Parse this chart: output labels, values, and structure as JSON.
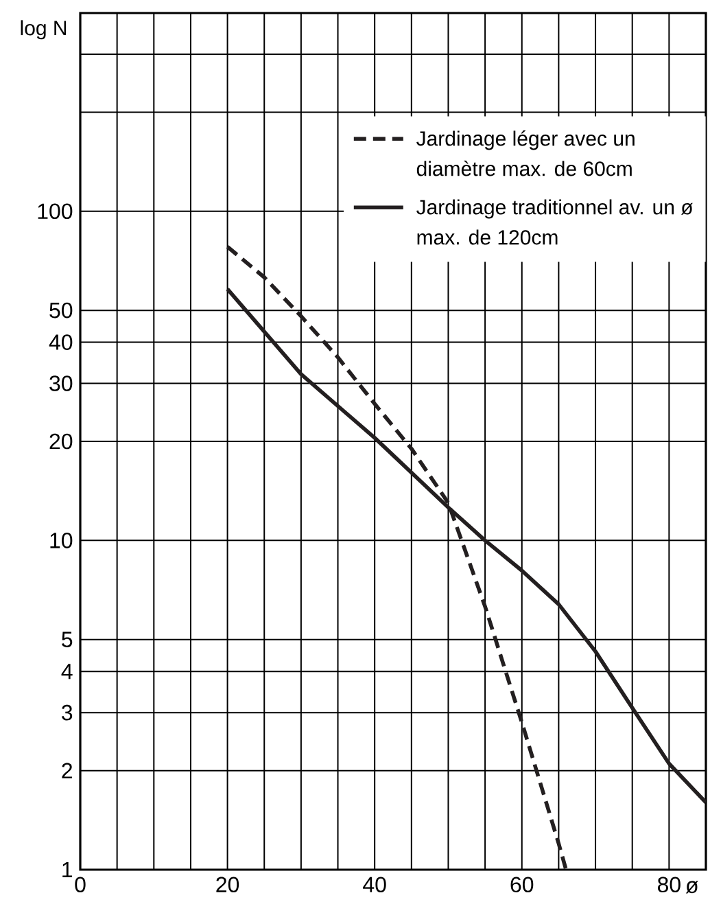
{
  "chart_data": {
    "type": "line",
    "xlabel": "ø",
    "ylabel": "log N",
    "log": "y",
    "grid": true,
    "legend": "top right",
    "marker": "none",
    "xlim": [
      0,
      85
    ],
    "ylim": [
      1,
      400
    ],
    "xticks": [
      0,
      {
        "value": 5,
        "label": null
      },
      {
        "value": 10,
        "label": null
      },
      {
        "value": 15,
        "label": null
      },
      20,
      {
        "value": 25,
        "label": null
      },
      {
        "value": 30,
        "label": null
      },
      {
        "value": 35,
        "label": null
      },
      40,
      {
        "value": 45,
        "label": null
      },
      {
        "value": 50,
        "label": null
      },
      {
        "value": 55,
        "label": null
      },
      60,
      {
        "value": 65,
        "label": null
      },
      {
        "value": 70,
        "label": null
      },
      {
        "value": 75,
        "label": null
      },
      80
    ],
    "yticks": [
      1,
      2,
      3,
      4,
      5,
      10,
      20,
      30,
      40,
      50,
      100,
      {
        "value": 200,
        "label": null
      },
      {
        "value": 300,
        "label": null
      }
    ],
    "series": [
      {
        "name": "Jardinage léger avec un diamètre max. de 60cm",
        "color": "#231f20",
        "line_style": "dashed",
        "x": [
          20,
          25,
          30,
          35,
          40,
          45,
          50,
          55,
          60,
          65,
          66
        ],
        "values": [
          78,
          63,
          48,
          36,
          26,
          19,
          13,
          6.3,
          2.8,
          1.2,
          1
        ]
      },
      {
        "name": "Jardinage traditionnel av. un ø max. de 120cm",
        "color": "#231f20",
        "line_style": "solid",
        "x": [
          20,
          30,
          40,
          50,
          55,
          60,
          65,
          70,
          75,
          80,
          85
        ],
        "values": [
          58,
          32,
          20.5,
          12.6,
          10,
          8.1,
          6.4,
          4.6,
          3.1,
          2.1,
          1.6
        ]
      }
    ]
  }
}
